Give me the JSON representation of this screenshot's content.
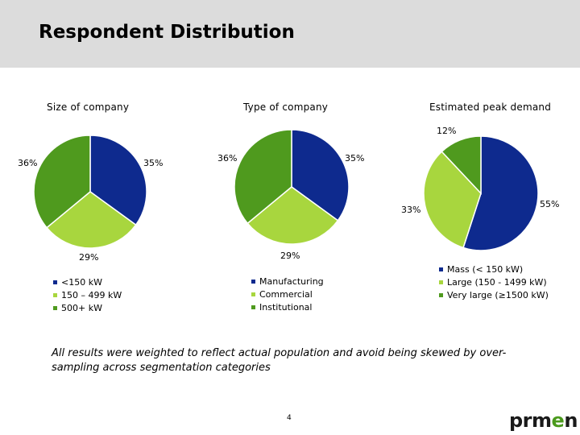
{
  "slide": {
    "title": "Respondent Distribution",
    "footnote": "All results were weighted to reflect actual population and avoid being skewed by over-sampling across segmentation categories",
    "page_number": "4",
    "logo_text_1": "prm",
    "logo_text_2": "e",
    "logo_text_3": "n"
  },
  "colors": {
    "dark_blue": "#0e2a8e",
    "light_green": "#a8d63e",
    "mid_green": "#4f9a1e"
  },
  "chart_data": [
    {
      "type": "pie",
      "title": "Size of company",
      "slices": [
        {
          "label": "<150 kW",
          "value": 35,
          "display": "35%",
          "color": "#0e2a8e"
        },
        {
          "label": "150 – 499 kW",
          "value": 29,
          "display": "29%",
          "color": "#a8d63e"
        },
        {
          "label": "500+ kW",
          "value": 36,
          "display": "36%",
          "color": "#4f9a1e"
        }
      ],
      "legend_position": "bottom-left"
    },
    {
      "type": "pie",
      "title": "Type of company",
      "slices": [
        {
          "label": "Manufacturing",
          "value": 35,
          "display": "35%",
          "color": "#0e2a8e"
        },
        {
          "label": "Commercial",
          "value": 29,
          "display": "29%",
          "color": "#a8d63e"
        },
        {
          "label": "Institutional",
          "value": 36,
          "display": "36%",
          "color": "#4f9a1e"
        }
      ],
      "legend_position": "bottom"
    },
    {
      "type": "pie",
      "title": "Estimated peak demand",
      "slices": [
        {
          "label": "Mass (< 150 kW)",
          "value": 55,
          "display": "55%",
          "color": "#0e2a8e"
        },
        {
          "label": "Large (150 - 1499 kW)",
          "value": 33,
          "display": "33%",
          "color": "#a8d63e"
        },
        {
          "label": "Very large (≥1500 kW)",
          "value": 12,
          "display": "12%",
          "color": "#4f9a1e"
        }
      ],
      "legend_position": "bottom-right"
    }
  ]
}
